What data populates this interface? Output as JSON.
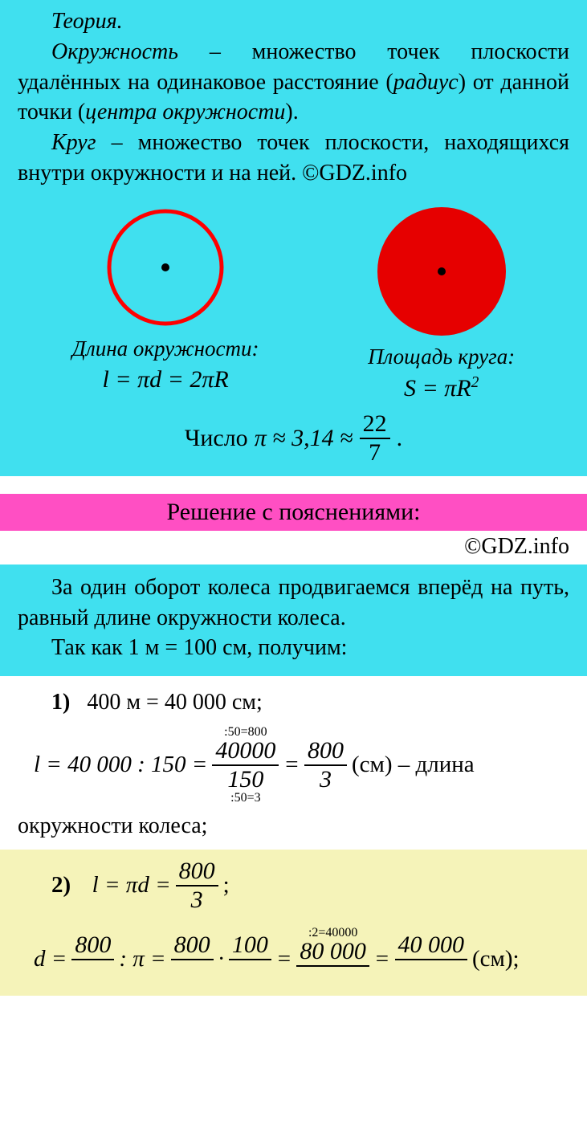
{
  "watermark_text": "GDZ.INFO",
  "watermark_color": "rgba(100,100,100,0.35)",
  "colors": {
    "cyan_bg": "#40e0ef",
    "pink_bg": "#ff4fc3",
    "yellow_bg": "#f5f3b9",
    "circle_stroke": "#ff0000",
    "circle_fill": "#e60000",
    "text": "#000000"
  },
  "theory": {
    "title": "Теория.",
    "def1_term": "Окружность",
    "def1_body": " – множество точек плоскости удалённых на одинаковое рас­стояние (",
    "def1_radius": "радиус",
    "def1_body2": ") от данной точки (",
    "def1_center": "цен­тра окружности",
    "def1_body3": ").",
    "def2_term": "Круг",
    "def2_body": " – множество точек плоскости, находящихся внутри окружности и на ней. ©GDZ.info"
  },
  "diagrams": {
    "left_label": "Длина окружности:",
    "left_formula": "l = πd = 2πR",
    "right_label": "Площадь круга:",
    "right_formula_base": "S = πR",
    "right_formula_exp": "2",
    "circle_outline": {
      "r": 70,
      "stroke_width": 5
    },
    "circle_filled": {
      "r": 80
    }
  },
  "pi": {
    "prefix": "Число ",
    "approx": "π ≈ 3,14 ≈",
    "num": "22",
    "den": "7",
    "suffix": "."
  },
  "pink_header": "Решение с пояснениями:",
  "copyright": "©GDZ.info",
  "explain": {
    "p1": "За один оборот колеса продвигаемся вперёд на путь, равный длине окружно­сти колеса.",
    "p2": "Так как 1 м = 100 см, получим:"
  },
  "step1": {
    "label": "1)",
    "conv": "400 м = 40 000 см;",
    "lhs": "l = 40 000 : 150 =",
    "anno_top": ":50=800",
    "f1_num": "40000",
    "f1_den": "150",
    "anno_bot": ":50=3",
    "eq": "=",
    "f2_num": "800",
    "f2_den": "3",
    "unit": " (см)  –  длина",
    "tail": "окружности колеса;"
  },
  "step2": {
    "label": "2)",
    "lhs": "l = πd =",
    "f1_num": "800",
    "f1_den": "3",
    "semi": ";",
    "line2_lhs": "d =",
    "f2a_num": "800",
    "colon_pi": ": π =",
    "f2b_num": "800",
    "dot": "·",
    "f2c_num": "100",
    "eq2": "=",
    "anno_top": ":2=40000",
    "f3_num": "80 000",
    "eq3": "=",
    "f4_num": "40 000",
    "unit": " (см);"
  }
}
